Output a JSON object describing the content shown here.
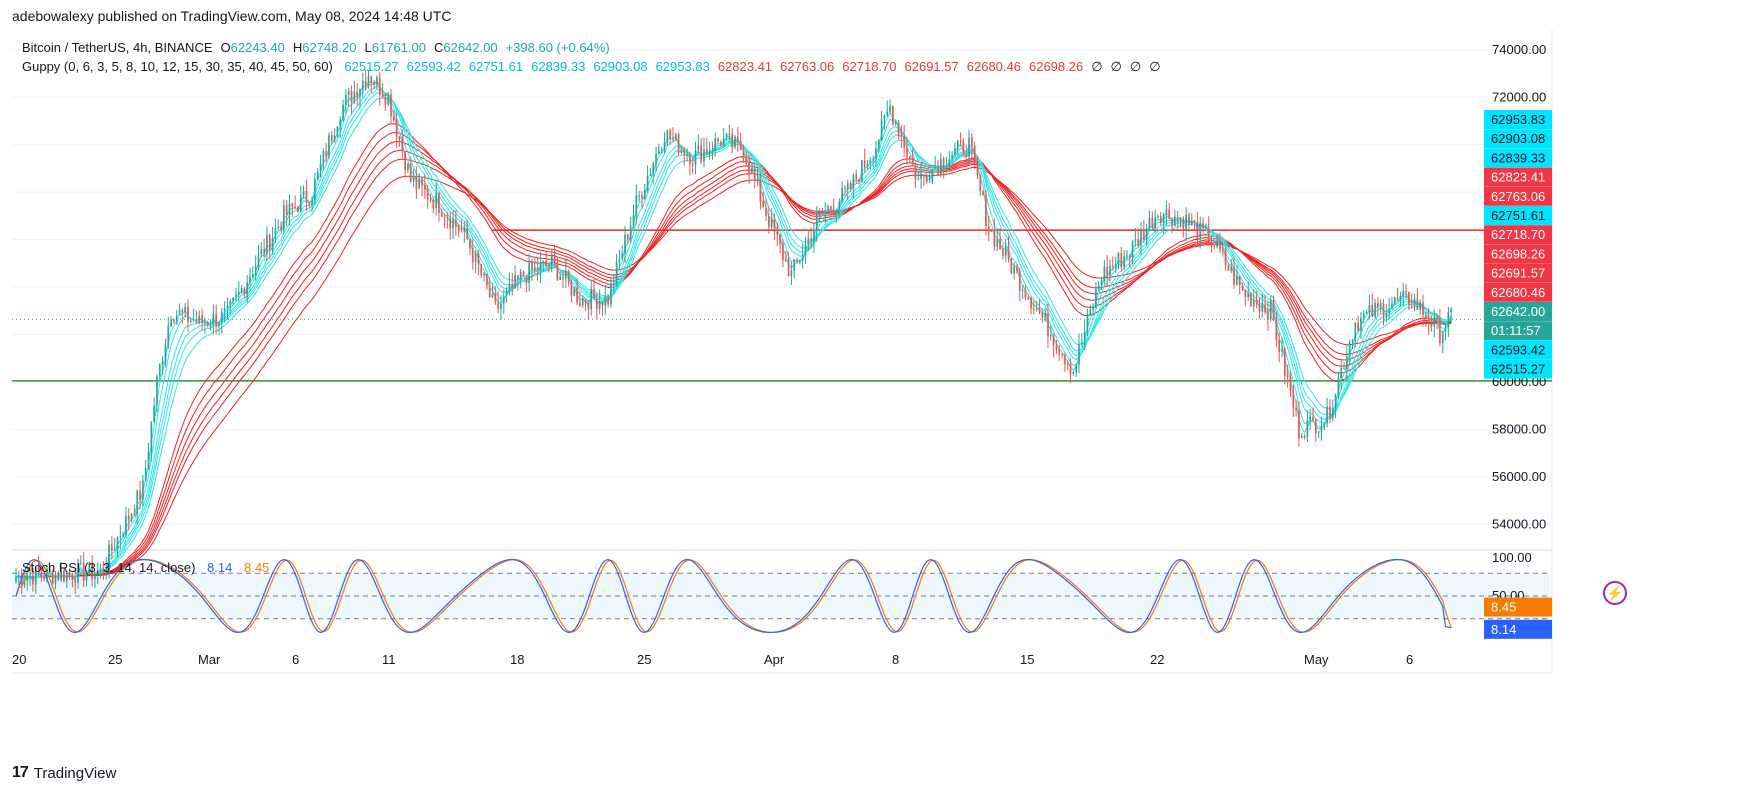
{
  "header": {
    "publish_line": "adebowalexy published on TradingView.com, May 08, 2024 14:48 UTC"
  },
  "legend": {
    "symbol": "Bitcoin / TetherUS, 4h, BINANCE",
    "o_label": "O",
    "open": "62243.40",
    "h_label": "H",
    "high": "62748.20",
    "l_label": "L",
    "low": "61761.00",
    "c_label": "C",
    "close": "62642.00",
    "change": "+398.60 (+0.64%)",
    "guppy_title": "Guppy (0, 6, 3, 5, 8, 10, 12, 15, 30, 35, 40, 45, 50, 60)",
    "guppy_short": [
      "62515.27",
      "62593.42",
      "62751.61",
      "62839.33",
      "62903.08",
      "62953.83"
    ],
    "guppy_long": [
      "62823.41",
      "62763.06",
      "62718.70",
      "62691.57",
      "62680.46",
      "62698.26"
    ],
    "guppy_empty": [
      "∅",
      "∅",
      "∅",
      "∅"
    ]
  },
  "stoch": {
    "title": "Stoch RSI (3, 3, 14, 14, close)",
    "k": "8.14",
    "d": "8.45"
  },
  "footer": {
    "brand": "TradingView",
    "logo_text": "17"
  },
  "colors": {
    "bull": "#26a69a",
    "bear": "#ef5350",
    "short_ema": "#2ee6e6",
    "long_ema": "#ef2020",
    "k_line": "#2962ff",
    "d_line": "#f57c00",
    "resistance": "#e53935",
    "support": "#43a047"
  },
  "chart_data": {
    "type": "candlestick",
    "price_axis": {
      "ticks": [
        54000,
        56000,
        58000,
        60000,
        72000,
        74000
      ],
      "tick_labels": [
        "54000.00",
        "56000.00",
        "58000.00",
        "60000.00",
        "72000.00",
        "74000.00"
      ],
      "range": [
        53000,
        74500
      ]
    },
    "time_axis": {
      "labels": [
        "20",
        "25",
        "Mar",
        "6",
        "11",
        "18",
        "25",
        "Apr",
        "8",
        "15",
        "22",
        "May",
        "6"
      ]
    },
    "horizontal_lines": [
      {
        "value": 66400,
        "color": "red"
      },
      {
        "value": 60050,
        "color": "green"
      }
    ],
    "current_price_line": 62642,
    "price_labels": [
      {
        "text": "62953.83",
        "kind": "short"
      },
      {
        "text": "62903.08",
        "kind": "short"
      },
      {
        "text": "62839.33",
        "kind": "short"
      },
      {
        "text": "62823.41",
        "kind": "long"
      },
      {
        "text": "62763.06",
        "kind": "long"
      },
      {
        "text": "62751.61",
        "kind": "short"
      },
      {
        "text": "62718.70",
        "kind": "long"
      },
      {
        "text": "62698.26",
        "kind": "long"
      },
      {
        "text": "62691.57",
        "kind": "long"
      },
      {
        "text": "62680.46",
        "kind": "long"
      },
      {
        "text": "62642.00",
        "kind": "last"
      },
      {
        "text": "01:11:57",
        "kind": "countdown"
      },
      {
        "text": "62593.42",
        "kind": "short"
      },
      {
        "text": "62515.27",
        "kind": "short"
      }
    ],
    "price_path": [
      [
        0,
        51800
      ],
      [
        30,
        52000
      ],
      [
        45,
        55500
      ],
      [
        50,
        60000
      ],
      [
        55,
        63000
      ],
      [
        65,
        62500
      ],
      [
        75,
        62800
      ],
      [
        85,
        65000
      ],
      [
        95,
        67000
      ],
      [
        105,
        68000
      ],
      [
        115,
        71500
      ],
      [
        125,
        73000
      ],
      [
        132,
        72000
      ],
      [
        140,
        68500
      ],
      [
        150,
        67500
      ],
      [
        160,
        66000
      ],
      [
        170,
        63000
      ],
      [
        180,
        64500
      ],
      [
        190,
        65000
      ],
      [
        200,
        63500
      ],
      [
        210,
        63500
      ],
      [
        220,
        67500
      ],
      [
        230,
        70500
      ],
      [
        240,
        69500
      ],
      [
        250,
        70200
      ],
      [
        258,
        69800
      ],
      [
        268,
        66500
      ],
      [
        275,
        64500
      ],
      [
        285,
        67000
      ],
      [
        295,
        68000
      ],
      [
        305,
        70000
      ],
      [
        310,
        71600
      ],
      [
        320,
        68500
      ],
      [
        330,
        69500
      ],
      [
        338,
        70000
      ],
      [
        345,
        66500
      ],
      [
        355,
        64500
      ],
      [
        365,
        62500
      ],
      [
        375,
        60500
      ],
      [
        385,
        64500
      ],
      [
        395,
        65500
      ],
      [
        405,
        67200
      ],
      [
        415,
        66800
      ],
      [
        425,
        65800
      ],
      [
        435,
        63800
      ],
      [
        445,
        63000
      ],
      [
        455,
        58000
      ],
      [
        465,
        58500
      ],
      [
        475,
        62500
      ],
      [
        485,
        63200
      ],
      [
        495,
        63500
      ],
      [
        505,
        62100
      ],
      [
        508,
        62642
      ]
    ],
    "price_path_count": 510,
    "stoch_rsi": {
      "range": [
        0,
        100
      ],
      "ticks": [
        100,
        50
      ],
      "tick_labels": [
        "100.00",
        "50.00"
      ],
      "bands": [
        80,
        20
      ],
      "k_last": 8.14,
      "d_last": 8.45
    }
  }
}
